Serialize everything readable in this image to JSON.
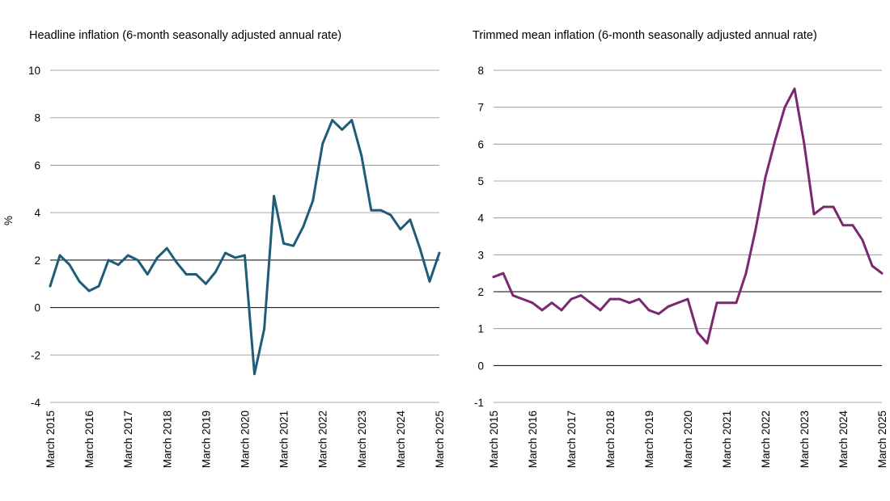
{
  "chart_data": [
    {
      "type": "line",
      "title": "Headline inflation (6-month seasonally adjusted annual rate)",
      "ylabel": "%",
      "xlabel": "",
      "ylim": [
        -4,
        10
      ],
      "y_ticks": [
        -4,
        -2,
        0,
        2,
        4,
        6,
        8,
        10
      ],
      "y_tick_labels": [
        "-4",
        "-2",
        "0",
        "2",
        "4",
        "6",
        "8",
        "10"
      ],
      "reference_lines": [
        0,
        2
      ],
      "grid": true,
      "x_tick_labels": [
        "March 2015",
        "March 2016",
        "March 2017",
        "March 2018",
        "March 2019",
        "March 2020",
        "March 2021",
        "March 2022",
        "March 2023",
        "March 2024",
        "March 2025"
      ],
      "x_start": "March 2015",
      "x_end": "March 2025",
      "series": [
        {
          "color": "#1f5c78",
          "values": [
            0.9,
            2.2,
            1.8,
            1.1,
            0.7,
            0.9,
            2.0,
            1.8,
            2.2,
            2.0,
            1.4,
            2.1,
            2.5,
            1.9,
            1.4,
            1.4,
            1.0,
            1.5,
            2.3,
            2.1,
            2.2,
            -2.8,
            -0.9,
            4.7,
            2.7,
            2.6,
            3.4,
            4.5,
            6.9,
            7.9,
            7.5,
            7.9,
            6.4,
            4.1,
            4.1,
            3.9,
            3.3,
            3.7,
            2.5,
            1.1,
            2.3
          ]
        }
      ]
    },
    {
      "type": "line",
      "title": "Trimmed mean inflation (6-month seasonally adjusted annual rate)",
      "ylabel": "",
      "xlabel": "",
      "ylim": [
        -1,
        8
      ],
      "y_ticks": [
        -1,
        0,
        1,
        2,
        3,
        4,
        5,
        6,
        7,
        8
      ],
      "y_tick_labels": [
        "-1",
        "0",
        "1",
        "2",
        "3",
        "4",
        "5",
        "6",
        "7",
        "8"
      ],
      "reference_lines": [
        0,
        2
      ],
      "grid": true,
      "x_tick_labels": [
        "March 2015",
        "March 2016",
        "March 2017",
        "March 2018",
        "March 2019",
        "March 2020",
        "March 2021",
        "March 2022",
        "March 2023",
        "March 2024",
        "March 2025"
      ],
      "x_start": "March 2015",
      "x_end": "March 2025",
      "series": [
        {
          "color": "#7a2870",
          "values": [
            2.4,
            2.5,
            1.9,
            1.8,
            1.7,
            1.5,
            1.7,
            1.5,
            1.8,
            1.9,
            1.7,
            1.5,
            1.8,
            1.8,
            1.7,
            1.8,
            1.5,
            1.4,
            1.6,
            1.7,
            1.8,
            0.9,
            0.6,
            1.7,
            1.7,
            1.7,
            2.5,
            3.7,
            5.1,
            6.1,
            7.0,
            7.5,
            6.0,
            4.1,
            4.3,
            4.3,
            3.8,
            3.8,
            3.4,
            2.7,
            2.5
          ]
        }
      ]
    }
  ]
}
